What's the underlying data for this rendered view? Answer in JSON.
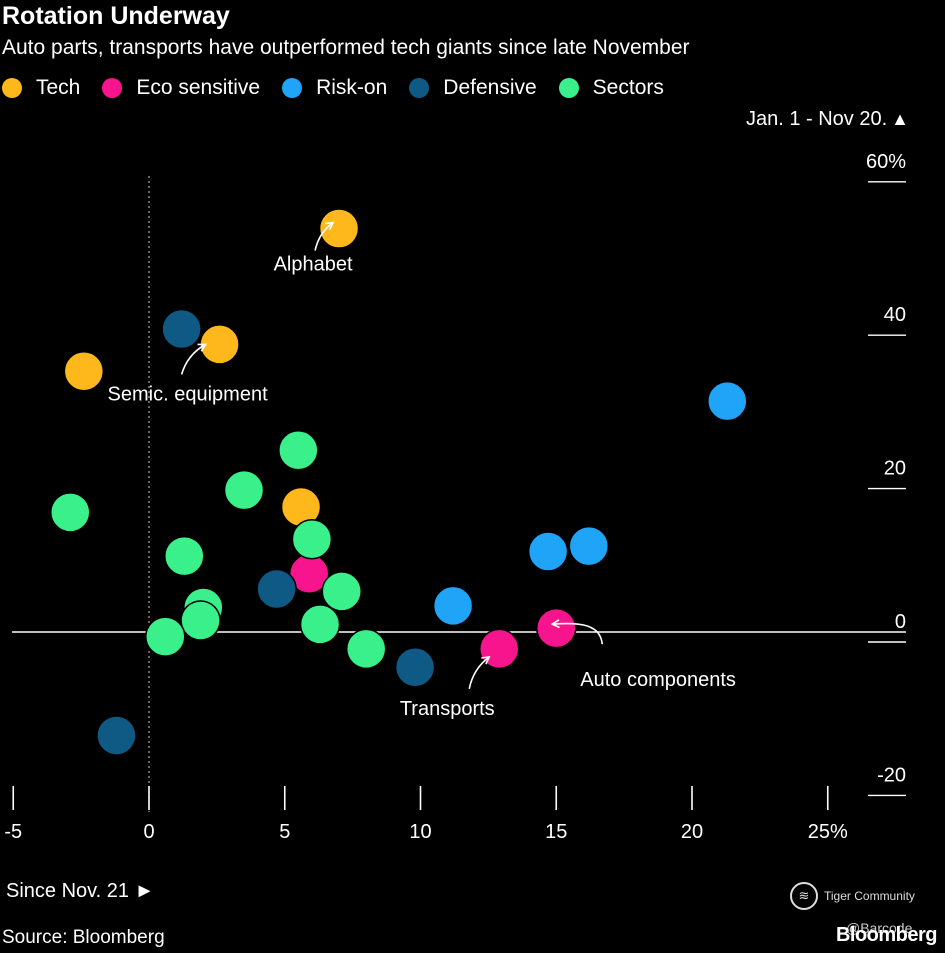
{
  "chart_data": {
    "type": "scatter",
    "title": "Rotation Underway",
    "subtitle": "Auto parts, transports have outperformed tech giants since late November",
    "xlabel": "Since Nov. 21",
    "ylabel": "Jan. 1 - Nov 20.",
    "xlim": [
      -5,
      27
    ],
    "ylim": [
      -20,
      60
    ],
    "x_ticks": [
      -5,
      0,
      5,
      10,
      15,
      20,
      25
    ],
    "x_tick_labels": [
      "-5",
      "0",
      "5",
      "10",
      "15",
      "20",
      "25%"
    ],
    "y_ticks": [
      60,
      40,
      20,
      0,
      -20
    ],
    "y_tick_labels": [
      "60%",
      "40",
      "20",
      "0",
      "-20"
    ],
    "legend_position": "top-left",
    "series": [
      {
        "name": "Tech",
        "color": "#FFB81C",
        "points": [
          {
            "x": 7.0,
            "y": 52.6
          },
          {
            "x": 2.6,
            "y": 37.5
          },
          {
            "x": -2.4,
            "y": 34.0
          },
          {
            "x": 5.6,
            "y": 16.3
          }
        ]
      },
      {
        "name": "Eco sensitive",
        "color": "#F8148D",
        "points": [
          {
            "x": 5.9,
            "y": 7.6
          },
          {
            "x": 15.0,
            "y": 0.5
          },
          {
            "x": 12.9,
            "y": -2.2
          }
        ]
      },
      {
        "name": "Risk-on",
        "color": "#1FA4F7",
        "points": [
          {
            "x": 21.3,
            "y": 30.1
          },
          {
            "x": 16.2,
            "y": 11.2
          },
          {
            "x": 14.7,
            "y": 10.5
          },
          {
            "x": 11.2,
            "y": 3.4
          }
        ]
      },
      {
        "name": "Defensive",
        "color": "#0E5A85",
        "points": [
          {
            "x": 1.2,
            "y": 39.5
          },
          {
            "x": 4.7,
            "y": 5.6
          },
          {
            "x": 9.8,
            "y": -4.6
          },
          {
            "x": -1.2,
            "y": -13.5
          }
        ]
      },
      {
        "name": "Sectors",
        "color": "#39F08A",
        "points": [
          {
            "x": 5.5,
            "y": 23.7
          },
          {
            "x": 3.5,
            "y": 18.5
          },
          {
            "x": -2.9,
            "y": 15.6
          },
          {
            "x": 1.3,
            "y": 9.9
          },
          {
            "x": 6.0,
            "y": 12.1
          },
          {
            "x": 7.1,
            "y": 5.3
          },
          {
            "x": 2.0,
            "y": 3.2
          },
          {
            "x": 1.9,
            "y": 1.5
          },
          {
            "x": 0.6,
            "y": -0.6
          },
          {
            "x": 6.3,
            "y": 1.0
          },
          {
            "x": 8.0,
            "y": -2.2
          }
        ]
      }
    ],
    "annotations": [
      {
        "text": "Alphabet",
        "x": 7.0,
        "y": 52.6
      },
      {
        "text": "Semic. equipment",
        "x": 2.6,
        "y": 37.5
      },
      {
        "text": "Transports",
        "x": 12.9,
        "y": -2.2
      },
      {
        "text": "Auto components",
        "x": 15.0,
        "y": 0.5
      }
    ]
  },
  "source": "Source: Bloomberg",
  "brand": "Bloomberg",
  "watermark": {
    "text": "Tiger Community",
    "handle": "@Barcode"
  }
}
